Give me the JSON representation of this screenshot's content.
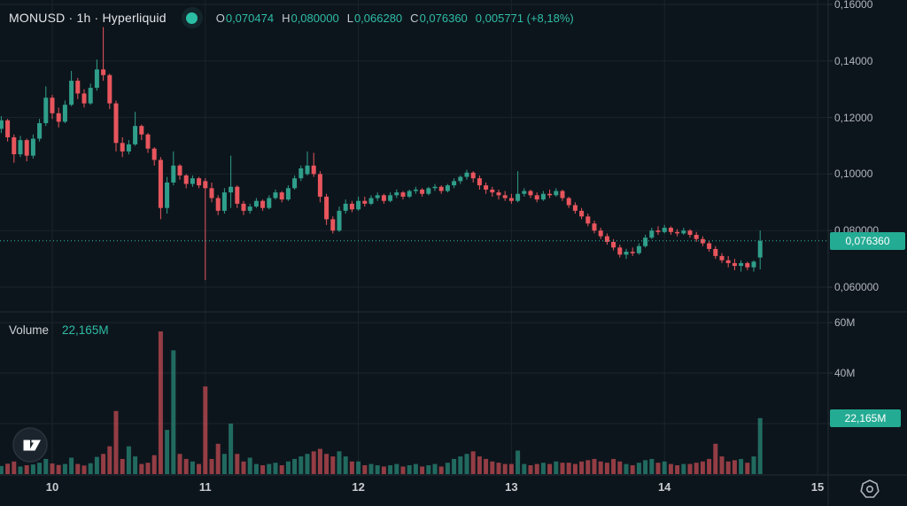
{
  "header": {
    "title": "MONUSD · 1h · Hyperliquid",
    "ohlc": {
      "o_label": "O",
      "o": "0,070474",
      "h_label": "H",
      "h": "0,080000",
      "l_label": "L",
      "l": "0,066280",
      "c_label": "C",
      "c": "0,076360",
      "change": "0,005771 (+8,18%)"
    }
  },
  "volume_pane": {
    "label": "Volume",
    "value": "22,165M"
  },
  "price_axis": {
    "tag": "0,076360"
  },
  "volume_axis": {
    "tag": "22,165M"
  },
  "colors": {
    "background": "#0d151c",
    "up": "#2f9e8a",
    "down": "#e8555d",
    "accent": "#2ebda6",
    "tag_bg": "#24ab94",
    "grid": "#1a232b",
    "divider": "#222c35",
    "axis_text": "#b2b5be",
    "title_text": "#e2e5e8"
  },
  "chart_data": {
    "type": "candlestick",
    "title": "MONUSD · 1h · Hyperliquid",
    "symbol": "MONUSD",
    "interval": "1h",
    "venue": "Hyperliquid",
    "legend_last_candle": {
      "open": "0,070474",
      "high": "0,080000",
      "low": "0,066280",
      "close": "0,076360",
      "change": "0,005771",
      "change_pct": "+8,18%"
    },
    "price_scale": {
      "ticks": [
        [
          0.16,
          "0,16000"
        ],
        [
          0.14,
          "0,14000"
        ],
        [
          0.12,
          "0,12000"
        ],
        [
          0.1,
          "0,10000"
        ],
        [
          0.08,
          "0,080000"
        ],
        [
          0.06,
          "0,060000"
        ]
      ],
      "ylim": [
        0.0525,
        0.1616
      ],
      "last_price": 0.07636
    },
    "volume_scale": {
      "ticks": [
        [
          60,
          "60M"
        ],
        [
          40,
          "40M"
        ],
        [
          20,
          "20M"
        ]
      ],
      "ylim": [
        0,
        68
      ],
      "last_volume": 22.165,
      "last_volume_label": "22,165M"
    },
    "time_scale": {
      "tick_labels": [
        "10",
        "11",
        "12",
        "13",
        "14",
        "15"
      ],
      "tick_indices": [
        8,
        32,
        56,
        80,
        104,
        128
      ]
    },
    "candles": {
      "columns": [
        "open",
        "high",
        "low",
        "close",
        "volume_m"
      ],
      "rows": [
        [
          0.116,
          0.1205,
          0.1145,
          0.119,
          3.2
        ],
        [
          0.119,
          0.1195,
          0.1115,
          0.113,
          4.1
        ],
        [
          0.113,
          0.114,
          0.104,
          0.107,
          5.0
        ],
        [
          0.107,
          0.1135,
          0.106,
          0.112,
          3.0
        ],
        [
          0.112,
          0.1125,
          0.1045,
          0.1065,
          3.5
        ],
        [
          0.1065,
          0.114,
          0.1055,
          0.1125,
          3.8
        ],
        [
          0.1125,
          0.1195,
          0.1115,
          0.118,
          4.5
        ],
        [
          0.118,
          0.131,
          0.117,
          0.127,
          6.0
        ],
        [
          0.127,
          0.128,
          0.1195,
          0.1215,
          4.2
        ],
        [
          0.1215,
          0.1235,
          0.1165,
          0.1185,
          3.6
        ],
        [
          0.1185,
          0.126,
          0.118,
          0.1245,
          4.0
        ],
        [
          0.1245,
          0.1365,
          0.124,
          0.133,
          6.5
        ],
        [
          0.133,
          0.134,
          0.1265,
          0.1285,
          4.0
        ],
        [
          0.1285,
          0.13,
          0.1235,
          0.125,
          3.4
        ],
        [
          0.125,
          0.132,
          0.1245,
          0.1305,
          4.3
        ],
        [
          0.1305,
          0.1405,
          0.1295,
          0.137,
          6.8
        ],
        [
          0.137,
          0.152,
          0.133,
          0.135,
          8.0
        ],
        [
          0.135,
          0.1355,
          0.123,
          0.125,
          11.0
        ],
        [
          0.125,
          0.126,
          0.108,
          0.111,
          25.0
        ],
        [
          0.111,
          0.113,
          0.106,
          0.108,
          6.0
        ],
        [
          0.108,
          0.112,
          0.107,
          0.1105,
          11.0
        ],
        [
          0.1105,
          0.122,
          0.11,
          0.117,
          7.0
        ],
        [
          0.117,
          0.1175,
          0.112,
          0.114,
          4.0
        ],
        [
          0.114,
          0.1145,
          0.1075,
          0.109,
          4.5
        ],
        [
          0.109,
          0.1095,
          0.103,
          0.105,
          7.5
        ],
        [
          0.105,
          0.106,
          0.084,
          0.088,
          56.5
        ],
        [
          0.088,
          0.099,
          0.086,
          0.097,
          17.5
        ],
        [
          0.097,
          0.108,
          0.096,
          0.103,
          49.0
        ],
        [
          0.103,
          0.1035,
          0.098,
          0.0995,
          8.0
        ],
        [
          0.0995,
          0.1,
          0.095,
          0.0965,
          6.0
        ],
        [
          0.0965,
          0.0995,
          0.0955,
          0.0985,
          5.0
        ],
        [
          0.0985,
          0.099,
          0.095,
          0.096,
          4.0
        ],
        [
          0.0975,
          0.0985,
          0.0625,
          0.095,
          34.7
        ],
        [
          0.095,
          0.097,
          0.09,
          0.0915,
          6.0
        ],
        [
          0.0915,
          0.0925,
          0.0855,
          0.087,
          12.0
        ],
        [
          0.087,
          0.095,
          0.086,
          0.0935,
          8.0
        ],
        [
          0.0935,
          0.1065,
          0.088,
          0.0955,
          20.0
        ],
        [
          0.0955,
          0.096,
          0.088,
          0.0895,
          8.0
        ],
        [
          0.0895,
          0.0905,
          0.0855,
          0.087,
          5.0
        ],
        [
          0.087,
          0.0895,
          0.086,
          0.0885,
          6.5
        ],
        [
          0.0885,
          0.0915,
          0.088,
          0.0905,
          4.0
        ],
        [
          0.0905,
          0.091,
          0.087,
          0.088,
          3.5
        ],
        [
          0.088,
          0.0925,
          0.0875,
          0.0915,
          4.0
        ],
        [
          0.0915,
          0.0945,
          0.091,
          0.0935,
          4.5
        ],
        [
          0.0935,
          0.094,
          0.09,
          0.091,
          3.5
        ],
        [
          0.091,
          0.096,
          0.0905,
          0.095,
          5.0
        ],
        [
          0.095,
          0.0995,
          0.0945,
          0.0985,
          6.0
        ],
        [
          0.0985,
          0.103,
          0.0975,
          0.102,
          7.0
        ],
        [
          0.1,
          0.108,
          0.0995,
          0.103,
          8.0
        ],
        [
          0.103,
          0.1075,
          0.099,
          0.1,
          9.0
        ],
        [
          0.1,
          0.101,
          0.09,
          0.092,
          10.0
        ],
        [
          0.092,
          0.093,
          0.082,
          0.084,
          8.0
        ],
        [
          0.084,
          0.085,
          0.079,
          0.08,
          7.0
        ],
        [
          0.08,
          0.0885,
          0.0795,
          0.087,
          9.0
        ],
        [
          0.087,
          0.091,
          0.086,
          0.0895,
          7.0
        ],
        [
          0.0895,
          0.0905,
          0.0865,
          0.0875,
          5.0
        ],
        [
          0.0875,
          0.092,
          0.087,
          0.0905,
          5.0
        ],
        [
          0.0905,
          0.092,
          0.0885,
          0.0895,
          3.5
        ],
        [
          0.0895,
          0.0925,
          0.089,
          0.0915,
          4.0
        ],
        [
          0.0915,
          0.0935,
          0.0905,
          0.0925,
          3.5
        ],
        [
          0.0925,
          0.093,
          0.0895,
          0.0905,
          3.0
        ],
        [
          0.0905,
          0.0935,
          0.09,
          0.0925,
          3.5
        ],
        [
          0.0925,
          0.0945,
          0.0915,
          0.0935,
          4.0
        ],
        [
          0.0935,
          0.094,
          0.091,
          0.092,
          3.0
        ],
        [
          0.092,
          0.0945,
          0.0915,
          0.094,
          3.5
        ],
        [
          0.094,
          0.0955,
          0.093,
          0.0945,
          4.0
        ],
        [
          0.0945,
          0.095,
          0.092,
          0.093,
          3.0
        ],
        [
          0.093,
          0.0955,
          0.0925,
          0.095,
          3.5
        ],
        [
          0.095,
          0.0965,
          0.094,
          0.0955,
          4.0
        ],
        [
          0.0955,
          0.096,
          0.093,
          0.094,
          3.0
        ],
        [
          0.094,
          0.0965,
          0.0935,
          0.096,
          4.5
        ],
        [
          0.096,
          0.0985,
          0.095,
          0.0975,
          6.0
        ],
        [
          0.0975,
          0.0995,
          0.0965,
          0.099,
          7.0
        ],
        [
          0.099,
          0.1015,
          0.098,
          0.1005,
          8.0
        ],
        [
          0.1005,
          0.101,
          0.097,
          0.0985,
          9.0
        ],
        [
          0.0985,
          0.0995,
          0.0945,
          0.096,
          7.0
        ],
        [
          0.096,
          0.097,
          0.093,
          0.0945,
          6.0
        ],
        [
          0.0945,
          0.0955,
          0.092,
          0.0935,
          5.0
        ],
        [
          0.0935,
          0.0945,
          0.091,
          0.0925,
          4.5
        ],
        [
          0.0925,
          0.094,
          0.0905,
          0.0915,
          4.0
        ],
        [
          0.0915,
          0.093,
          0.0895,
          0.0905,
          4.0
        ],
        [
          0.0905,
          0.101,
          0.09,
          0.093,
          9.3
        ],
        [
          0.093,
          0.095,
          0.092,
          0.094,
          4.0
        ],
        [
          0.094,
          0.0945,
          0.0915,
          0.0925,
          3.5
        ],
        [
          0.0925,
          0.0935,
          0.09,
          0.091,
          4.0
        ],
        [
          0.091,
          0.094,
          0.0905,
          0.093,
          4.5
        ],
        [
          0.093,
          0.0945,
          0.0915,
          0.0925,
          4.0
        ],
        [
          0.0925,
          0.095,
          0.092,
          0.094,
          5.0
        ],
        [
          0.094,
          0.0945,
          0.0905,
          0.0915,
          4.5
        ],
        [
          0.0915,
          0.092,
          0.088,
          0.089,
          4.5
        ],
        [
          0.089,
          0.09,
          0.086,
          0.087,
          4.0
        ],
        [
          0.087,
          0.088,
          0.084,
          0.085,
          5.0
        ],
        [
          0.085,
          0.086,
          0.0815,
          0.0825,
          5.5
        ],
        [
          0.0825,
          0.0835,
          0.079,
          0.08,
          6.0
        ],
        [
          0.08,
          0.081,
          0.077,
          0.078,
          5.0
        ],
        [
          0.078,
          0.079,
          0.075,
          0.076,
          4.5
        ],
        [
          0.076,
          0.077,
          0.073,
          0.074,
          6.0
        ],
        [
          0.074,
          0.075,
          0.0705,
          0.0715,
          5.0
        ],
        [
          0.0715,
          0.0735,
          0.07,
          0.0725,
          4.0
        ],
        [
          0.0725,
          0.074,
          0.071,
          0.072,
          3.5
        ],
        [
          0.072,
          0.0755,
          0.0715,
          0.0745,
          4.5
        ],
        [
          0.0745,
          0.0785,
          0.074,
          0.0775,
          5.5
        ],
        [
          0.0775,
          0.081,
          0.077,
          0.08,
          6.0
        ],
        [
          0.08,
          0.0815,
          0.0785,
          0.0795,
          4.5
        ],
        [
          0.0795,
          0.082,
          0.079,
          0.081,
          5.0
        ],
        [
          0.081,
          0.0815,
          0.0785,
          0.0795,
          4.0
        ],
        [
          0.0795,
          0.0805,
          0.078,
          0.079,
          3.5
        ],
        [
          0.079,
          0.081,
          0.0785,
          0.08,
          4.0
        ],
        [
          0.08,
          0.0805,
          0.0775,
          0.0785,
          4.0
        ],
        [
          0.0785,
          0.0795,
          0.076,
          0.077,
          4.5
        ],
        [
          0.077,
          0.078,
          0.0745,
          0.0755,
          5.0
        ],
        [
          0.0755,
          0.0765,
          0.0725,
          0.0735,
          6.0
        ],
        [
          0.0735,
          0.0745,
          0.07,
          0.071,
          12.0
        ],
        [
          0.071,
          0.072,
          0.0685,
          0.0695,
          7.0
        ],
        [
          0.0695,
          0.071,
          0.067,
          0.0685,
          5.0
        ],
        [
          0.0685,
          0.07,
          0.066,
          0.0675,
          5.5
        ],
        [
          0.0675,
          0.0695,
          0.0655,
          0.0685,
          6.0
        ],
        [
          0.0685,
          0.069,
          0.066,
          0.067,
          4.5
        ],
        [
          0.067,
          0.0695,
          0.0655,
          0.069,
          7.0
        ],
        [
          0.070474,
          0.08,
          0.06628,
          0.07636,
          22.165
        ]
      ]
    }
  }
}
